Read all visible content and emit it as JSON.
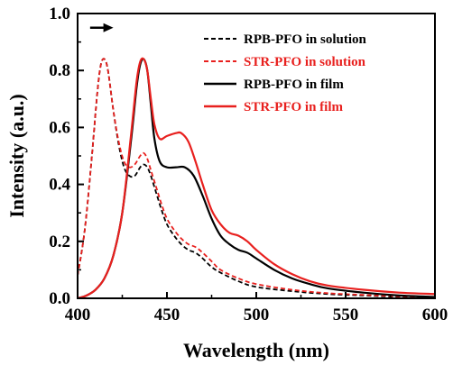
{
  "chart_data": {
    "type": "line",
    "xlabel": "Wavelength (nm)",
    "ylabel": "Intensity (a.u.)",
    "xlim": [
      400,
      600
    ],
    "ylim": [
      0.0,
      1.0
    ],
    "xticks": [
      "400",
      "450",
      "500",
      "550",
      "600"
    ],
    "yticks": [
      "0.0",
      "0.2",
      "0.4",
      "0.6",
      "0.8",
      "1.0"
    ],
    "grid": false,
    "legend_position": "top-right",
    "annotation": "arrow pointing right (red shift)",
    "series": [
      {
        "name": "RPB-PFO in solution",
        "color": "#000000",
        "dash": true,
        "x": [
          400,
          404,
          408,
          411,
          413,
          415,
          417,
          420,
          423,
          426,
          429,
          432,
          435,
          437,
          439,
          441,
          444,
          447,
          450,
          454,
          458,
          462,
          466,
          470,
          475,
          480,
          490,
          500,
          520,
          540,
          560,
          580,
          600
        ],
        "y": [
          0.08,
          0.24,
          0.5,
          0.72,
          0.82,
          0.84,
          0.8,
          0.66,
          0.54,
          0.46,
          0.43,
          0.43,
          0.46,
          0.47,
          0.46,
          0.43,
          0.37,
          0.31,
          0.26,
          0.22,
          0.19,
          0.17,
          0.16,
          0.14,
          0.11,
          0.09,
          0.06,
          0.04,
          0.025,
          0.015,
          0.01,
          0.005,
          0.004
        ]
      },
      {
        "name": "STR-PFO in solution",
        "color": "#e8201e",
        "dash": true,
        "x": [
          400,
          404,
          408,
          411,
          413,
          415,
          417,
          420,
          423,
          426,
          429,
          432,
          435,
          437,
          439,
          441,
          444,
          447,
          450,
          454,
          458,
          462,
          466,
          470,
          475,
          480,
          490,
          500,
          520,
          540,
          560,
          580,
          600
        ],
        "y": [
          0.08,
          0.24,
          0.5,
          0.72,
          0.82,
          0.84,
          0.8,
          0.66,
          0.55,
          0.48,
          0.46,
          0.47,
          0.5,
          0.51,
          0.49,
          0.45,
          0.39,
          0.33,
          0.28,
          0.24,
          0.21,
          0.19,
          0.18,
          0.16,
          0.13,
          0.1,
          0.07,
          0.05,
          0.03,
          0.018,
          0.012,
          0.007,
          0.005
        ]
      },
      {
        "name": "RPB-PFO in film",
        "color": "#000000",
        "dash": false,
        "x": [
          400,
          405,
          410,
          415,
          420,
          425,
          430,
          433,
          435,
          437,
          439,
          441,
          443,
          446,
          450,
          455,
          460,
          465,
          470,
          475,
          480,
          485,
          490,
          495,
          500,
          510,
          520,
          530,
          540,
          560,
          580,
          600
        ],
        "y": [
          0.0,
          0.01,
          0.03,
          0.07,
          0.15,
          0.3,
          0.56,
          0.74,
          0.82,
          0.84,
          0.8,
          0.68,
          0.56,
          0.48,
          0.46,
          0.46,
          0.46,
          0.43,
          0.36,
          0.28,
          0.22,
          0.19,
          0.17,
          0.16,
          0.14,
          0.1,
          0.07,
          0.05,
          0.035,
          0.02,
          0.01,
          0.005
        ]
      },
      {
        "name": "STR-PFO in film",
        "color": "#e8201e",
        "dash": false,
        "x": [
          400,
          405,
          410,
          415,
          420,
          425,
          430,
          433,
          435,
          437,
          439,
          441,
          443,
          446,
          450,
          455,
          458,
          462,
          466,
          470,
          475,
          480,
          485,
          490,
          495,
          500,
          510,
          520,
          530,
          540,
          560,
          580,
          600
        ],
        "y": [
          0.0,
          0.01,
          0.03,
          0.07,
          0.15,
          0.3,
          0.58,
          0.76,
          0.83,
          0.84,
          0.8,
          0.7,
          0.61,
          0.56,
          0.57,
          0.58,
          0.58,
          0.55,
          0.48,
          0.4,
          0.31,
          0.26,
          0.23,
          0.22,
          0.2,
          0.17,
          0.12,
          0.085,
          0.06,
          0.045,
          0.03,
          0.02,
          0.015
        ]
      }
    ]
  }
}
